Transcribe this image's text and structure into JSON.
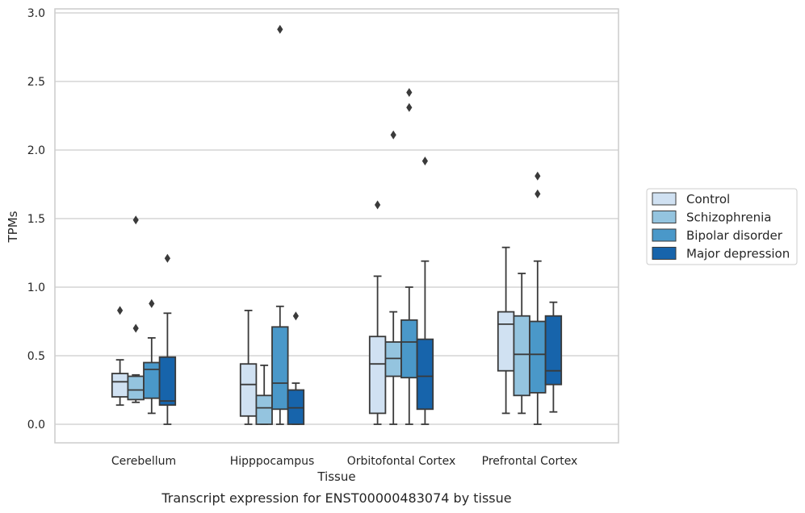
{
  "chart_data": {
    "type": "boxplot",
    "title": "",
    "caption": "Transcript expression for ENST00000483074 by tissue",
    "xlabel": "Tissue",
    "ylabel": "TPMs",
    "ylim": [
      -0.14,
      3.03
    ],
    "yticks": [
      0.0,
      0.5,
      1.0,
      1.5,
      2.0,
      2.5,
      3.0
    ],
    "ytick_labels": [
      "0.0",
      "0.5",
      "1.0",
      "1.5",
      "2.0",
      "2.5",
      "3.0"
    ],
    "grid": "horizontal",
    "legend_position": "right",
    "categories": [
      "Cerebellum",
      "Hipppocampus",
      "Orbitofontal Cortex",
      "Prefrontal Cortex"
    ],
    "series": [
      {
        "name": "Control",
        "color": "#d0e1f2",
        "boxes": [
          {
            "whisker_low": 0.14,
            "q1": 0.2,
            "median": 0.31,
            "q3": 0.37,
            "whisker_high": 0.47,
            "outliers": [
              0.83
            ]
          },
          {
            "whisker_low": 0.0,
            "q1": 0.06,
            "median": 0.29,
            "q3": 0.44,
            "whisker_high": 0.83,
            "outliers": []
          },
          {
            "whisker_low": 0.0,
            "q1": 0.08,
            "median": 0.44,
            "q3": 0.64,
            "whisker_high": 1.08,
            "outliers": [
              1.6
            ]
          },
          {
            "whisker_low": 0.08,
            "q1": 0.39,
            "median": 0.73,
            "q3": 0.82,
            "whisker_high": 1.29,
            "outliers": []
          }
        ]
      },
      {
        "name": "Schizophrenia",
        "color": "#94c4df",
        "boxes": [
          {
            "whisker_low": 0.16,
            "q1": 0.18,
            "median": 0.25,
            "q3": 0.35,
            "whisker_high": 0.36,
            "outliers": [
              0.7,
              1.49
            ]
          },
          {
            "whisker_low": 0.0,
            "q1": 0.0,
            "median": 0.12,
            "q3": 0.21,
            "whisker_high": 0.43,
            "outliers": []
          },
          {
            "whisker_low": 0.0,
            "q1": 0.35,
            "median": 0.48,
            "q3": 0.6,
            "whisker_high": 0.82,
            "outliers": [
              2.11
            ]
          },
          {
            "whisker_low": 0.08,
            "q1": 0.21,
            "median": 0.51,
            "q3": 0.79,
            "whisker_high": 1.1,
            "outliers": []
          }
        ]
      },
      {
        "name": "Bipolar disorder",
        "color": "#4a98c9",
        "boxes": [
          {
            "whisker_low": 0.08,
            "q1": 0.19,
            "median": 0.4,
            "q3": 0.45,
            "whisker_high": 0.63,
            "outliers": [
              0.88
            ]
          },
          {
            "whisker_low": 0.0,
            "q1": 0.11,
            "median": 0.3,
            "q3": 0.71,
            "whisker_high": 0.86,
            "outliers": [
              2.88
            ]
          },
          {
            "whisker_low": 0.0,
            "q1": 0.34,
            "median": 0.6,
            "q3": 0.76,
            "whisker_high": 1.0,
            "outliers": [
              2.31,
              2.42
            ]
          },
          {
            "whisker_low": 0.0,
            "q1": 0.23,
            "median": 0.51,
            "q3": 0.75,
            "whisker_high": 1.19,
            "outliers": [
              1.68,
              1.81
            ]
          }
        ]
      },
      {
        "name": "Major depression",
        "color": "#1764ab",
        "boxes": [
          {
            "whisker_low": 0.0,
            "q1": 0.14,
            "median": 0.17,
            "q3": 0.49,
            "whisker_high": 0.81,
            "outliers": [
              1.21
            ]
          },
          {
            "whisker_low": 0.0,
            "q1": 0.0,
            "median": 0.12,
            "q3": 0.25,
            "whisker_high": 0.3,
            "outliers": [
              0.79
            ]
          },
          {
            "whisker_low": 0.0,
            "q1": 0.11,
            "median": 0.35,
            "q3": 0.62,
            "whisker_high": 1.19,
            "outliers": [
              1.92
            ]
          },
          {
            "whisker_low": 0.09,
            "q1": 0.29,
            "median": 0.39,
            "q3": 0.79,
            "whisker_high": 0.89,
            "outliers": []
          }
        ]
      }
    ]
  }
}
